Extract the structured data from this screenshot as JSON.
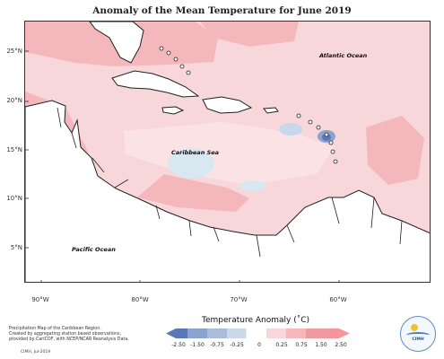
{
  "title": "Anomaly of the Mean Temperature for June 2019",
  "map": {
    "latitude_labels": [
      "25°N",
      "20°N",
      "15°N",
      "10°N",
      "5°N"
    ],
    "longitude_labels": [
      "90°W",
      "80°W",
      "70°W",
      "60°W"
    ],
    "place_labels": {
      "atlantic": "Atlantic Ocean",
      "caribbean": "Caribbean Sea",
      "pacific": "Pacific Ocean"
    },
    "colors": {
      "ocean_base": "#f8d7da",
      "land_base": "#ffffff",
      "border": "#1f1f1f",
      "warm_strong": "#f08d93",
      "warm_medium": "#f6b6bb",
      "warm_light": "#fbe3e5",
      "cool_medium": "#9fb9d9",
      "cool_dark": "#5d7fb9",
      "neutral_band": "#d9e7f0"
    }
  },
  "legend": {
    "title": "Temperature Anomaly (˚C)",
    "ticks": [
      "-2.50",
      "-1.50",
      "-0.75",
      "-0.25",
      "0",
      "0.25",
      "0.75",
      "1.50",
      "2.50"
    ],
    "colors": [
      "#5a78b8",
      "#8aa3cf",
      "#a9bddb",
      "#cbd8e8",
      "#ffffff",
      "#f8d7da",
      "#f4b7bc",
      "#ef9aa1",
      "#f5969c"
    ]
  },
  "footer": {
    "line1": "Precipitation Map of the Caribbean Region.",
    "line2": "Created by aggregating station based observations,",
    "line3": "provided by CariCOF, with NCEP/NCAR Reanalysis Data.",
    "note": "CIMH, Jul-2019"
  },
  "logo": {
    "text": "CIMH",
    "icon": "cimh-logo-icon"
  }
}
